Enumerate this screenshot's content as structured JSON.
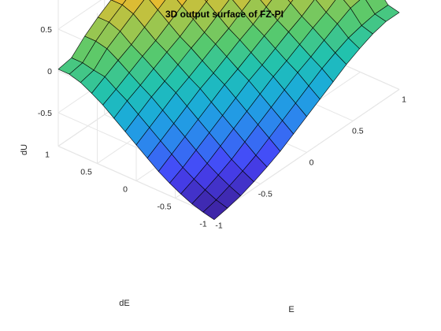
{
  "chart_data": {
    "type": "surface",
    "title": "3D output surface of FZ-PI",
    "xlabel": "E",
    "ylabel": "dE",
    "zlabel": "dU",
    "xlim": [
      -1,
      1
    ],
    "ylim": [
      -1,
      1
    ],
    "zlim": [
      -0.9,
      0.9
    ],
    "xticks": [
      "-1",
      "-0.5",
      "0",
      "0.5",
      "1"
    ],
    "yticks": [
      "-1",
      "-0.5",
      "0",
      "0.5",
      "1"
    ],
    "zticks": [
      "-0.5",
      "0",
      "0.5"
    ],
    "grid_x": [
      -1,
      -0.8571,
      -0.7143,
      -0.5714,
      -0.4286,
      -0.2857,
      -0.1429,
      0,
      0.1429,
      0.2857,
      0.4286,
      0.5714,
      0.7143,
      0.8571,
      1
    ],
    "grid_y": [
      -1,
      -0.8571,
      -0.7143,
      -0.5714,
      -0.4286,
      -0.2857,
      -0.1429,
      0,
      0.1429,
      0.2857,
      0.4286,
      0.5714,
      0.7143,
      0.8571,
      1
    ],
    "z": [
      [
        -0.95,
        -0.92,
        -0.88,
        -0.82,
        -0.75,
        -0.67,
        -0.57,
        -0.47,
        -0.37,
        -0.27,
        -0.17,
        -0.09,
        -0.02,
        0.02,
        0.02
      ],
      [
        -0.92,
        -0.88,
        -0.82,
        -0.75,
        -0.67,
        -0.57,
        -0.47,
        -0.37,
        -0.27,
        -0.17,
        -0.09,
        -0.02,
        0.02,
        0.05,
        0.05
      ],
      [
        -0.88,
        -0.82,
        -0.75,
        -0.67,
        -0.57,
        -0.47,
        -0.37,
        -0.27,
        -0.17,
        -0.09,
        0.0,
        0.09,
        0.17,
        0.2,
        0.2
      ],
      [
        -0.82,
        -0.75,
        -0.67,
        -0.57,
        -0.47,
        -0.37,
        -0.27,
        -0.17,
        -0.09,
        0.0,
        0.09,
        0.17,
        0.27,
        0.32,
        0.32
      ],
      [
        -0.75,
        -0.67,
        -0.57,
        -0.47,
        -0.37,
        -0.27,
        -0.17,
        -0.09,
        0.0,
        0.09,
        0.17,
        0.27,
        0.37,
        0.42,
        0.42
      ],
      [
        -0.67,
        -0.57,
        -0.47,
        -0.37,
        -0.27,
        -0.17,
        -0.09,
        0.0,
        0.09,
        0.17,
        0.27,
        0.37,
        0.47,
        0.52,
        0.52
      ],
      [
        -0.57,
        -0.47,
        -0.37,
        -0.27,
        -0.17,
        -0.09,
        0.0,
        0.09,
        0.17,
        0.27,
        0.37,
        0.47,
        0.57,
        0.62,
        0.62
      ],
      [
        -0.47,
        -0.37,
        -0.27,
        -0.17,
        -0.09,
        0.0,
        0.09,
        0.17,
        0.27,
        0.37,
        0.47,
        0.57,
        0.67,
        0.72,
        0.72
      ],
      [
        -0.37,
        -0.27,
        -0.17,
        -0.09,
        0.0,
        0.09,
        0.17,
        0.27,
        0.37,
        0.47,
        0.57,
        0.67,
        0.75,
        0.8,
        0.8
      ],
      [
        -0.27,
        -0.17,
        -0.09,
        0.0,
        0.09,
        0.17,
        0.27,
        0.37,
        0.47,
        0.57,
        0.67,
        0.75,
        0.82,
        0.86,
        0.86
      ],
      [
        -0.17,
        -0.09,
        0.0,
        0.09,
        0.17,
        0.27,
        0.37,
        0.47,
        0.57,
        0.67,
        0.75,
        0.82,
        0.88,
        0.9,
        0.9
      ],
      [
        -0.09,
        0.0,
        0.09,
        0.17,
        0.27,
        0.37,
        0.47,
        0.57,
        0.67,
        0.75,
        0.82,
        0.88,
        0.92,
        0.94,
        0.94
      ],
      [
        -0.02,
        0.02,
        0.17,
        0.27,
        0.37,
        0.47,
        0.57,
        0.67,
        0.75,
        0.82,
        0.88,
        0.92,
        0.94,
        0.95,
        0.95
      ],
      [
        0.02,
        0.05,
        0.2,
        0.32,
        0.42,
        0.52,
        0.62,
        0.72,
        0.8,
        0.86,
        0.9,
        0.94,
        0.95,
        0.96,
        0.96
      ],
      [
        0.02,
        0.05,
        0.2,
        0.32,
        0.42,
        0.52,
        0.62,
        0.72,
        0.8,
        0.86,
        0.9,
        0.94,
        0.95,
        0.96,
        0.96
      ]
    ],
    "colormap": [
      "#3e26a8",
      "#4743f8",
      "#2f80f0",
      "#1ba9dd",
      "#20c2b0",
      "#5ac96b",
      "#a7c54a",
      "#f0b92c",
      "#fbd624",
      "#f9fb15"
    ],
    "edge_color": "#000000",
    "grid": true,
    "view": "3d"
  }
}
